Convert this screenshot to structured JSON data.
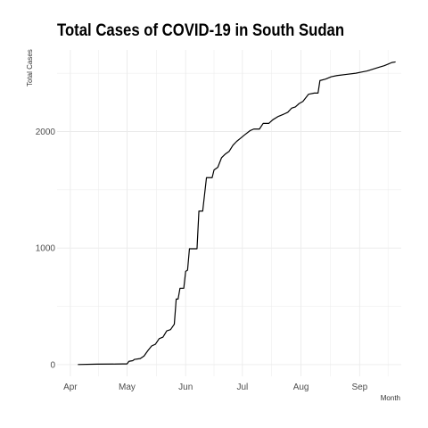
{
  "chart_data": {
    "type": "line",
    "title": "Total Cases of COVID-19 in South Sudan",
    "xlabel": "Month",
    "ylabel": "Total Cases",
    "x_ticks": [
      {
        "date": "2020-04-01",
        "label": "Apr"
      },
      {
        "date": "2020-05-01",
        "label": "May"
      },
      {
        "date": "2020-06-01",
        "label": "Jun"
      },
      {
        "date": "2020-07-01",
        "label": "Jul"
      },
      {
        "date": "2020-08-01",
        "label": "Aug"
      },
      {
        "date": "2020-09-01",
        "label": "Sep"
      }
    ],
    "y_ticks": [
      0,
      1000,
      2000
    ],
    "xlim": [
      "2020-03-25",
      "2020-09-23"
    ],
    "ylim": [
      -100,
      2700
    ],
    "grid": true,
    "colors": {
      "line": "#000000",
      "grid": "#ebebeb",
      "background": "#ffffff"
    },
    "series": [
      {
        "points": [
          [
            "2020-04-05",
            1
          ],
          [
            "2020-04-15",
            4
          ],
          [
            "2020-04-25",
            5
          ],
          [
            "2020-04-29",
            6
          ],
          [
            "2020-05-01",
            6
          ],
          [
            "2020-05-02",
            28
          ],
          [
            "2020-05-04",
            34
          ],
          [
            "2020-05-05",
            45
          ],
          [
            "2020-05-08",
            52
          ],
          [
            "2020-05-10",
            74
          ],
          [
            "2020-05-12",
            120
          ],
          [
            "2020-05-14",
            160
          ],
          [
            "2020-05-16",
            175
          ],
          [
            "2020-05-18",
            223
          ],
          [
            "2020-05-20",
            236
          ],
          [
            "2020-05-22",
            290
          ],
          [
            "2020-05-24",
            300
          ],
          [
            "2020-05-26",
            347
          ],
          [
            "2020-05-27",
            563
          ],
          [
            "2020-05-28",
            563
          ],
          [
            "2020-05-29",
            655
          ],
          [
            "2020-05-30",
            655
          ],
          [
            "2020-05-31",
            655
          ],
          [
            "2020-06-01",
            800
          ],
          [
            "2020-06-02",
            810
          ],
          [
            "2020-06-03",
            994
          ],
          [
            "2020-06-05",
            994
          ],
          [
            "2020-06-07",
            994
          ],
          [
            "2020-06-08",
            1317
          ],
          [
            "2020-06-10",
            1317
          ],
          [
            "2020-06-12",
            1604
          ],
          [
            "2020-06-15",
            1604
          ],
          [
            "2020-06-16",
            1670
          ],
          [
            "2020-06-18",
            1693
          ],
          [
            "2020-06-20",
            1776
          ],
          [
            "2020-06-22",
            1807
          ],
          [
            "2020-06-24",
            1830
          ],
          [
            "2020-06-26",
            1882
          ],
          [
            "2020-06-28",
            1916
          ],
          [
            "2020-06-30",
            1942
          ],
          [
            "2020-07-02",
            1969
          ],
          [
            "2020-07-05",
            2007
          ],
          [
            "2020-07-07",
            2021
          ],
          [
            "2020-07-10",
            2021
          ],
          [
            "2020-07-12",
            2070
          ],
          [
            "2020-07-15",
            2070
          ],
          [
            "2020-07-17",
            2100
          ],
          [
            "2020-07-20",
            2130
          ],
          [
            "2020-07-23",
            2150
          ],
          [
            "2020-07-25",
            2165
          ],
          [
            "2020-07-27",
            2200
          ],
          [
            "2020-07-29",
            2211
          ],
          [
            "2020-07-31",
            2240
          ],
          [
            "2020-08-02",
            2258
          ],
          [
            "2020-08-05",
            2320
          ],
          [
            "2020-08-08",
            2330
          ],
          [
            "2020-08-10",
            2330
          ],
          [
            "2020-08-11",
            2437
          ],
          [
            "2020-08-14",
            2450
          ],
          [
            "2020-08-17",
            2470
          ],
          [
            "2020-08-20",
            2480
          ],
          [
            "2020-08-25",
            2490
          ],
          [
            "2020-08-30",
            2500
          ],
          [
            "2020-09-02",
            2510
          ],
          [
            "2020-09-05",
            2520
          ],
          [
            "2020-09-08",
            2535
          ],
          [
            "2020-09-11",
            2550
          ],
          [
            "2020-09-14",
            2565
          ],
          [
            "2020-09-16",
            2578
          ],
          [
            "2020-09-18",
            2592
          ],
          [
            "2020-09-20",
            2597
          ]
        ]
      }
    ]
  }
}
